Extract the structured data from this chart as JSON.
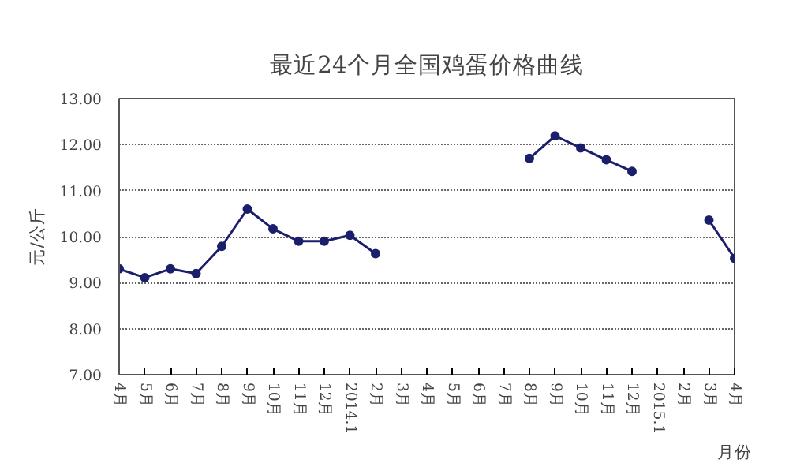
{
  "chart_data": {
    "type": "line",
    "title": "最近24个月全国鸡蛋价格曲线",
    "xlabel": "月份",
    "ylabel": "元/公斤",
    "categories": [
      "4月",
      "5月",
      "6月",
      "7月",
      "8月",
      "9月",
      "10月",
      "11月",
      "12月",
      "2014.1",
      "2月",
      "3月",
      "4月",
      "5月",
      "6月",
      "7月",
      "8月",
      "9月",
      "10月",
      "11月",
      "12月",
      "2015.1",
      "2月",
      "3月",
      "4月"
    ],
    "series": [
      {
        "color": "#1b1f6b",
        "values": [
          9.3,
          9.11,
          9.3,
          9.2,
          9.79,
          10.6,
          10.17,
          9.9,
          9.9,
          10.03,
          9.63,
          null,
          null,
          null,
          null,
          null,
          11.7,
          12.19,
          11.93,
          11.67,
          11.42,
          null,
          null,
          10.36,
          9.53
        ]
      }
    ],
    "ylim": [
      7,
      13
    ],
    "yticks": [
      {
        "value": 7,
        "label": "7.00"
      },
      {
        "value": 8,
        "label": "8.00"
      },
      {
        "value": 9,
        "label": "9.00"
      },
      {
        "value": 10,
        "label": "10.00"
      },
      {
        "value": 11,
        "label": "11.00"
      },
      {
        "value": 12,
        "label": "12.00"
      },
      {
        "value": 13,
        "label": "13.00"
      }
    ],
    "grid": "y",
    "marker": "circle",
    "line_style": "solid"
  }
}
